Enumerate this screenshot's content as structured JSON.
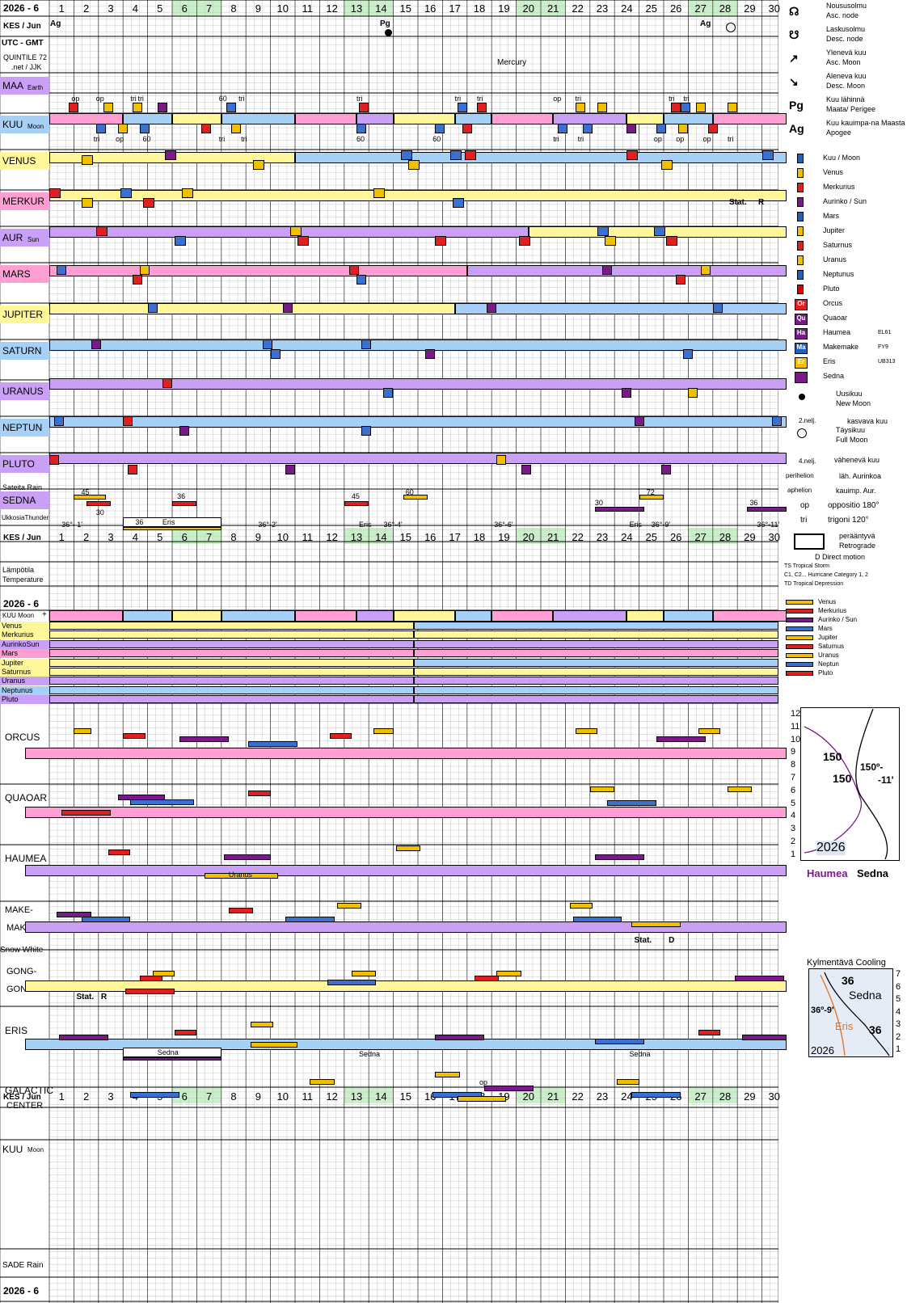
{
  "header": {
    "year_month": "2026 - 6",
    "kes_jun": "KES / Jun",
    "utc": "UTC - GMT",
    "quintile": "QUINTILE 72",
    "net": ".net / JJK"
  },
  "days": [
    "1",
    "2",
    "3",
    "4",
    "5",
    "6",
    "7",
    "8",
    "9",
    "10",
    "11",
    "12",
    "13",
    "14",
    "15",
    "16",
    "17",
    "18",
    "19",
    "20",
    "21",
    "22",
    "23",
    "24",
    "25",
    "26",
    "27",
    "28",
    "29",
    "30"
  ],
  "weekend_days": [
    6,
    7,
    13,
    14,
    20,
    21,
    27,
    28
  ],
  "colors": {
    "moon": "#3a70d0",
    "venus": "#f0c000",
    "mercury": "#e02020",
    "sun": "#7a1a8a",
    "mars": "#2060c0",
    "jupiter": "#f0c000",
    "saturn": "#e02020",
    "uranus": "#f0c000",
    "neptune": "#2060c0",
    "pluto": "#e00000",
    "sedna": "#7a1a8a",
    "yellow_band": "#fff79a",
    "blue_band": "#a6d0f5",
    "pink_band": "#ff9ed2",
    "purple_band": "#c9a0f5",
    "weekend": "#c9f0c9"
  },
  "top_events": {
    "ag1": "Ag",
    "pg": "Pg",
    "mercury_label": "Mercury",
    "ag2": "Ag"
  },
  "rows": {
    "maa": "MAA",
    "maa_sub": "Earth",
    "kuu": "KUU",
    "kuu_sub": "Moon",
    "venus": "VENUS",
    "merkur": "MERKUR",
    "aur": "AUR",
    "aur_sub": "Sun",
    "mars": "MARS",
    "jupiter": "JUPITER",
    "saturn": "SATURN",
    "uranus": "URANUS",
    "neptun": "NEPTUN",
    "pluto": "PLUTO",
    "sateita": "Sateita Rain",
    "sedna": "SEDNA",
    "ukkosia": "UkkosiaThunder"
  },
  "aspects_maa": [
    "op",
    "op",
    "tri",
    "tri",
    "60",
    "tri",
    "tri",
    "tri",
    "tri",
    "op",
    "tri",
    "tri",
    "tri"
  ],
  "aspects_kuu": [
    "tri",
    "op",
    "60",
    "tri",
    "tri",
    "60",
    "60",
    "tri",
    "tri",
    "op",
    "op",
    "op",
    "tri"
  ],
  "merkur_stat": "Stat.",
  "merkur_r": "R",
  "sedna_labels": [
    "45",
    "30",
    "36",
    "45",
    "60",
    "30",
    "72",
    "36"
  ],
  "eris_band": {
    "l1": "36°- 1'",
    "l2": "36",
    "l3": "Eris",
    "l4": "36°-2'",
    "l5": "Eris",
    "l6": "36°-4'",
    "l7": "36°-6'",
    "l8": "Eris",
    "l9": "36°-9'",
    "l10": "36°-11'"
  },
  "middle": {
    "lampotila": "Lämpötila",
    "temperature": "Temperature",
    "kuu_moon": "KUU Moon",
    "plus": "+"
  },
  "mid_rows": [
    "Venus",
    "Merkurius",
    "AurinkoSun",
    "Mars",
    "Jupiter",
    "Saturnus",
    "Uranus",
    "Neptunus",
    "Pluto"
  ],
  "lower_rows": {
    "orcus": "ORCUS",
    "quaoar": "QUAOAR",
    "haumea": "HAUMEA",
    "make1": "MAKE-",
    "make2": "MAKE",
    "snow": "Snow White",
    "gong1": "GONG-",
    "gong2": "GONG",
    "eris": "ERIS",
    "galactic": "GALACTIC",
    "center": "CENTER",
    "sade": "SADE Rain"
  },
  "lower_labels": {
    "make_stat": "Stat.",
    "make_d": "D",
    "gong_stat": "Stat.",
    "gong_r": "R",
    "haumea_uranus": "Uranus",
    "eris_sedna1": "Sedna",
    "eris_sedna2": "Sedna",
    "eris_sedna3": "Sedna",
    "gal_op": "op"
  },
  "legend": [
    {
      "fi": "Nousu­solmu",
      "en": "Asc. node",
      "sym": "☊"
    },
    {
      "fi": "Laskusolmu",
      "en": "Desc. node",
      "sym": "☋"
    },
    {
      "fi": "Ylenevä kuu",
      "en": "Asc. Moon",
      "sym": "↗"
    },
    {
      "fi": "Aleneva kuu",
      "en": "Desc. Moon",
      "sym": "↘"
    },
    {
      "fi": "Kuu lähinnä",
      "en": "Maata/ Perigee",
      "sym": "Pg"
    },
    {
      "fi": "Kuu kauimpa-na Maasta /",
      "en": "Apogee",
      "sym": "Ag"
    }
  ],
  "legend_planets": [
    {
      "name": "Kuu / Moon",
      "color": "#2060c0"
    },
    {
      "name": "Venus",
      "color": "#f0c000"
    },
    {
      "name": "Merkurius",
      "color": "#e02020"
    },
    {
      "name": "Aurinko / Sun",
      "color": "#7a1a8a"
    },
    {
      "name": "Mars",
      "color": "#2060c0"
    },
    {
      "name": "Jupiter",
      "color": "#f0c000"
    },
    {
      "name": "Saturnus",
      "color": "#e02020"
    },
    {
      "name": "Uranus",
      "color": "#f0c000"
    },
    {
      "name": "Neptunus",
      "color": "#2060c0"
    },
    {
      "name": "Pluto",
      "color": "#e00000"
    }
  ],
  "legend_dwarfs": [
    {
      "abbr": "Or",
      "name": "Orcus",
      "color": "#e02020"
    },
    {
      "abbr": "Qu",
      "name": "Quaoar",
      "color": "#7a1a8a"
    },
    {
      "abbr": "Ha",
      "name": "Haumea",
      "sub": "EL61",
      "color": "#7a1a8a"
    },
    {
      "abbr": "Ma",
      "name": "Makemake",
      "sub": "FY9",
      "color": "#2060c0"
    },
    {
      "abbr": "Er",
      "name": "Eris",
      "sub": "UB313",
      "color": "#f0c000"
    },
    {
      "abbr": "",
      "name": "Sedna",
      "color": "#7a1a8a"
    }
  ],
  "legend_misc": {
    "new_moon_fi": "Uusikuu",
    "new_moon_en": "New Moon",
    "q2_sym": "2.nelj.",
    "q2_txt": "kasvava kuu",
    "full_fi": "Täysikuu",
    "full_en": "Full Moon",
    "q4_sym": "4.nelj.",
    "q4_txt": "vähenevä kuu",
    "perihelion": "perihelion",
    "peri_txt": "läh. Aurinkoa",
    "aphelion": "aphelion",
    "aph_txt": "kauimp. Aur.",
    "op": "op",
    "op_txt": "oppositio 180°",
    "tri": "tri",
    "tri_txt": "trigoni 120°",
    "retro_fi": "peräänty­vä",
    "retro_en": "Retrograde",
    "direct": "D Direct motion",
    "ts": "TS  Tropical Storm",
    "c12": "C1, C2... Hurricane  Category 1, 2",
    "td": "TD  Tropical Depression"
  },
  "legend_mid": [
    "Venus",
    "Merkurius",
    "Aurinko / Sun",
    "Mars",
    "Jupiter",
    "Saturnus",
    "Uranus",
    "Neptun",
    "Pluto"
  ],
  "chart1": {
    "ticks": [
      "12",
      "11",
      "10",
      "9",
      "8",
      "7",
      "6",
      "5",
      "4",
      "3",
      "2",
      "1"
    ],
    "l150a": "150",
    "l150b": "150",
    "l150c": "150º-",
    "l11": "-11'",
    "year": "2026",
    "haumea": "Haumea",
    "sedna": "Sedna"
  },
  "chart2": {
    "title": "Kylmentävä Cooling",
    "ticks": [
      "7",
      "6",
      "5",
      "4",
      "3",
      "2",
      "1"
    ],
    "l36a": "36",
    "sedna": "Sedna",
    "l369": "36º-9'",
    "eris": "Eris",
    "l36b": "36",
    "year": "2026"
  }
}
